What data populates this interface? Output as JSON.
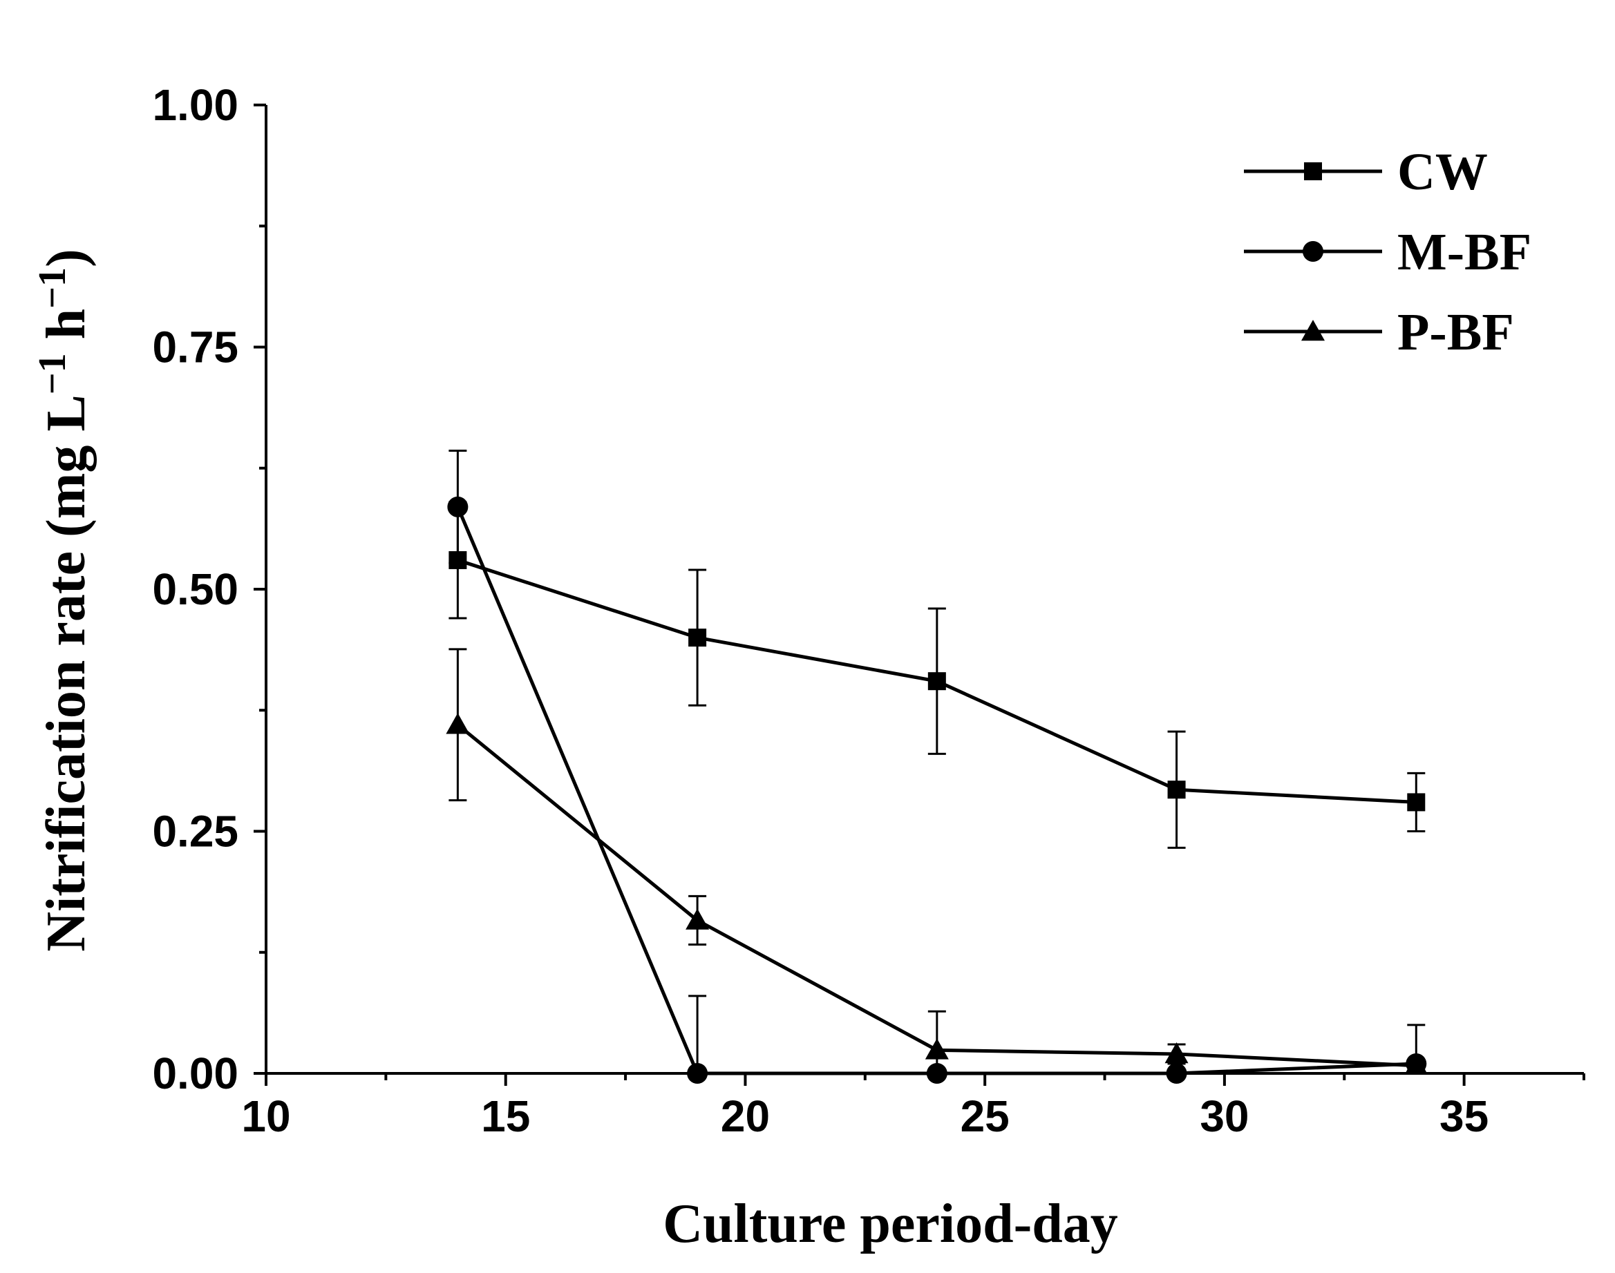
{
  "chart_data": {
    "type": "line",
    "xlabel": "Culture period-day",
    "ylabel": "Nitrification rate (mg L",
    "ylabel_sup1": "−1",
    "ylabel_mid": " h",
    "ylabel_sup2": "−1",
    "ylabel_end": ")",
    "xlim": [
      10,
      37.5
    ],
    "ylim": [
      0,
      1.0
    ],
    "x_ticks": [
      10,
      15,
      20,
      25,
      30,
      35
    ],
    "x_tick_labels": [
      "10",
      "15",
      "20",
      "25",
      "30",
      "35"
    ],
    "x_minor_ticks": [
      12.5,
      17.5,
      22.5,
      27.5,
      32.5,
      37.5
    ],
    "y_ticks": [
      0,
      0.25,
      0.5,
      0.75,
      1.0
    ],
    "y_tick_labels": [
      "0.00",
      "0.25",
      "0.50",
      "0.75",
      "1.00"
    ],
    "y_minor_ticks": [
      0.125,
      0.375,
      0.625,
      0.875
    ],
    "legend_position": "top-right",
    "series": [
      {
        "name": "CW",
        "marker": "square",
        "x": [
          14,
          19,
          24,
          29,
          34
        ],
        "values": [
          0.53,
          0.45,
          0.405,
          0.293,
          0.28
        ],
        "errors": [
          0.06,
          0.07,
          0.075,
          0.06,
          0.03
        ]
      },
      {
        "name": "M-BF",
        "marker": "circle",
        "x": [
          14,
          19,
          24,
          29,
          34
        ],
        "values": [
          0.585,
          0.0,
          0.0,
          0.0,
          0.01
        ],
        "errors": [
          0.058,
          0.08,
          0.0,
          0.0,
          0.04
        ]
      },
      {
        "name": "P-BF",
        "marker": "triangle",
        "x": [
          14,
          19,
          24,
          29,
          34
        ],
        "values": [
          0.36,
          0.158,
          0.024,
          0.02,
          0.008
        ],
        "errors": [
          0.078,
          0.025,
          0.04,
          0.01,
          0.005
        ]
      }
    ]
  }
}
